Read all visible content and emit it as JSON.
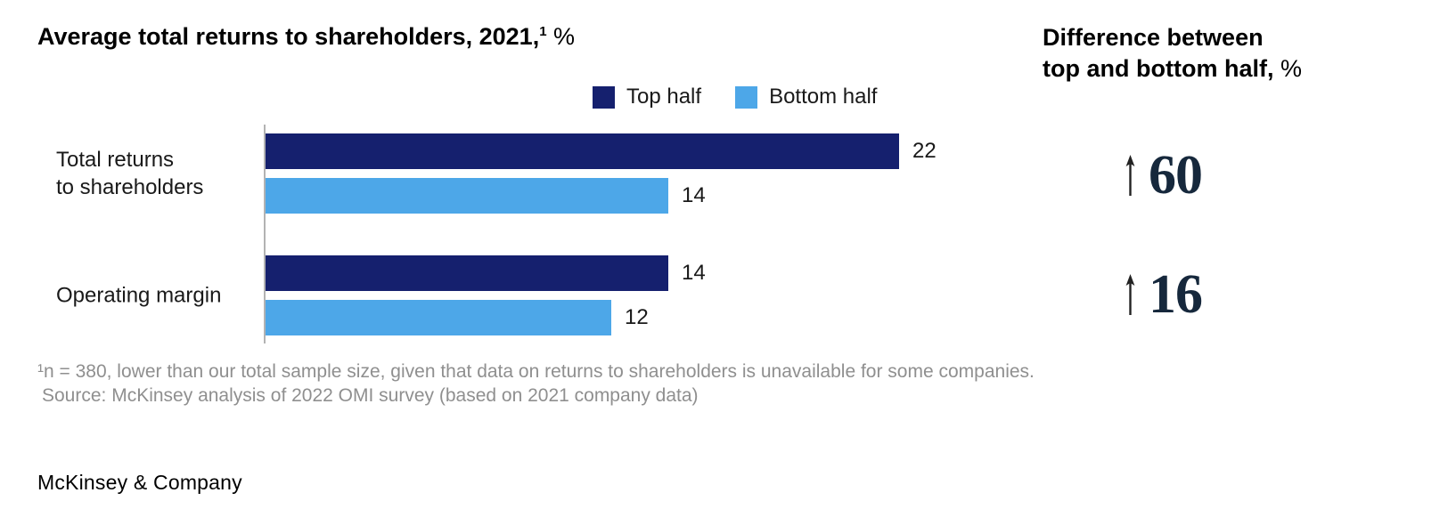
{
  "header": {
    "title_main": "Average total returns to shareholders, 2021,",
    "title_sup": "1",
    "title_unit": " %",
    "right_title_line1": "Difference between",
    "right_title_line2_main": "top and bottom half,",
    "right_title_line2_unit": " %"
  },
  "legend": [
    {
      "label": "Top half",
      "color": "#15206e"
    },
    {
      "label": "Bottom half",
      "color": "#4da7e8"
    }
  ],
  "chart_data": {
    "type": "bar",
    "orientation": "horizontal",
    "title": "Average total returns to shareholders, 2021, %",
    "categories": [
      "Total returns to shareholders",
      "Operating margin"
    ],
    "series": [
      {
        "name": "Top half",
        "color": "#15206e",
        "values": [
          22,
          14
        ]
      },
      {
        "name": "Bottom half",
        "color": "#4da7e8",
        "values": [
          14,
          12
        ]
      }
    ],
    "xlim": [
      0,
      22
    ],
    "value_labels": true,
    "grid": false,
    "legend_position": "top-right"
  },
  "categories_display": [
    {
      "lines": [
        "Total returns",
        "to shareholders"
      ]
    },
    {
      "lines": [
        "Operating margin"
      ]
    }
  ],
  "differences": {
    "items": [
      {
        "value": "60",
        "direction": "up"
      },
      {
        "value": "16",
        "direction": "up"
      }
    ]
  },
  "footnotes": [
    "¹n = 380, lower than our total sample size, given that data on returns to shareholders is unavailable for some companies.",
    "Source: McKinsey analysis of 2022 OMI survey (based on 2021 company data)"
  ],
  "branding": {
    "logo_text": "McKinsey & Company"
  },
  "colors": {
    "top_half": "#15206e",
    "bottom_half": "#4da7e8",
    "stat_number": "#16283c",
    "footnote_gray": "#8f8f8f",
    "axis_gray": "#b3b3b3"
  }
}
